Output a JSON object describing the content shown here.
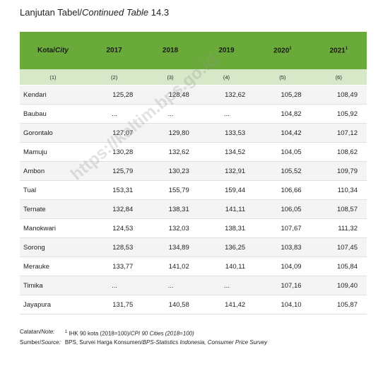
{
  "header": {
    "title": {
      "prefix": "Lanjutan Tabel/",
      "italic": "Continued Table",
      "number": "14.3"
    }
  },
  "table": {
    "header": [
      {
        "text": "Kota/",
        "italic": "City"
      },
      {
        "text": "2017"
      },
      {
        "text": "2018"
      },
      {
        "text": "2019"
      },
      {
        "text": "2020",
        "sup": "1"
      },
      {
        "text": "2021",
        "sup": "1"
      }
    ],
    "numbers": [
      "(1)",
      "(2)",
      "(3)",
      "(4)",
      "(5)",
      "(6)"
    ],
    "rows": [
      [
        "Kendari",
        "125,28",
        "128,48",
        "132,62",
        "105,28",
        "108,49"
      ],
      [
        "Baubau",
        "...",
        "...",
        "...",
        "104,82",
        "105,92"
      ],
      [
        "Gorontalo",
        "127,07",
        "129,80",
        "133,53",
        "104,42",
        "107,12"
      ],
      [
        "Mamuju",
        "130,28",
        "132,62",
        "134,52",
        "104,05",
        "108,62"
      ],
      [
        "Ambon",
        "125,79",
        "130,23",
        "132,91",
        "105,52",
        "109,79"
      ],
      [
        "Tual",
        "153,31",
        "155,79",
        "159,44",
        "106,66",
        "110,34"
      ],
      [
        "Ternate",
        "132,84",
        "138,31",
        "141,11",
        "106,05",
        "108,57"
      ],
      [
        "Manokwari",
        "124,53",
        "132,03",
        "138,31",
        "107,67",
        "111,32"
      ],
      [
        "Sorong",
        "128,53",
        "134,89",
        "136,25",
        "103,83",
        "107,45"
      ],
      [
        "Merauke",
        "133,77",
        "141,02",
        "140,11",
        "104,09",
        "105,84"
      ],
      [
        "Timika",
        "...",
        "...",
        "...",
        "107,16",
        "109,40"
      ],
      [
        "Jayapura",
        "131,75",
        "140,58",
        "141,42",
        "104,10",
        "105,87"
      ]
    ]
  },
  "watermark": "https://kaltim.bps.go.id",
  "notes": [
    {
      "label": "Catatan/",
      "label_italic": "Note:",
      "sup": "1",
      "text": " IHK 90 kota (2018=100)/",
      "text_italic": "CPI 90 Cities (2018=100)"
    },
    {
      "label": "Sumber/",
      "label_italic": "Source:",
      "text": "BPS, Survei Harga Konsumen/",
      "text_italic": "BPS-Statistics Indonesia, Consumer Price Survey"
    }
  ]
}
